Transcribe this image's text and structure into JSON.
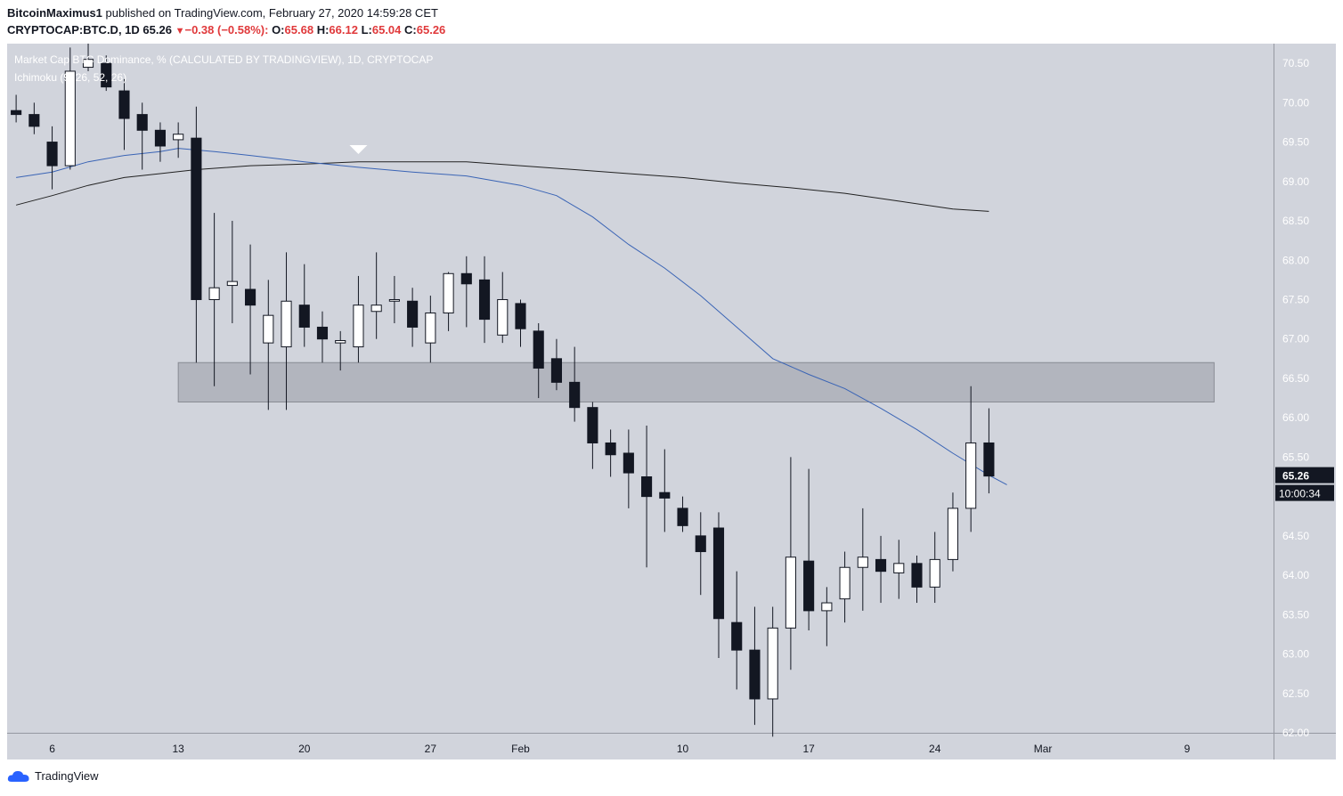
{
  "header": {
    "author": "BitcoinMaximus1",
    "published_text": "published on TradingView.com, February 27, 2020 14:59:28 CET",
    "symbol": "CRYPTOCAP:BTC.D, 1D",
    "last": "65.26",
    "change": "−0.38 (−0.58%):",
    "open_label": "O:",
    "open": "65.68",
    "high_label": "H:",
    "high": "66.12",
    "low_label": "L:",
    "low": "65.04",
    "close_label": "C:",
    "close": "65.26"
  },
  "chart_data": {
    "type": "candlestick",
    "title": "Market Cap BTC Dominance, % (CALCULATED BY TRADINGVIEW), 1D, CRYPTOCAP",
    "indicator": "Ichimoku (9, 26, 52, 26)",
    "ylim": [
      62.0,
      70.75
    ],
    "y_ticks": [
      "62.00",
      "62.50",
      "63.00",
      "63.50",
      "64.00",
      "64.50",
      "65.00",
      "65.50",
      "66.00",
      "66.50",
      "67.00",
      "67.50",
      "68.00",
      "68.50",
      "69.00",
      "69.50",
      "70.00",
      "70.50"
    ],
    "x_ticks": [
      "6",
      "13",
      "20",
      "27",
      "Feb",
      "10",
      "17",
      "24",
      "Mar",
      "9"
    ],
    "x_tick_days": [
      6,
      13,
      20,
      27,
      32,
      41,
      48,
      55,
      61,
      69
    ],
    "x_range_days": [
      3.5,
      73.8
    ],
    "candles": [
      {
        "d": "2020-01-04",
        "o": 69.9,
        "h": 70.1,
        "l": 69.75,
        "c": 69.85
      },
      {
        "d": "2020-01-05",
        "o": 69.85,
        "h": 70.0,
        "l": 69.6,
        "c": 69.7
      },
      {
        "d": "2020-01-06",
        "o": 69.5,
        "h": 69.7,
        "l": 68.9,
        "c": 69.2
      },
      {
        "d": "2020-01-07",
        "o": 69.2,
        "h": 70.7,
        "l": 69.15,
        "c": 70.4
      },
      {
        "d": "2020-01-08",
        "o": 70.45,
        "h": 70.75,
        "l": 70.4,
        "c": 70.55
      },
      {
        "d": "2020-01-09",
        "o": 70.5,
        "h": 70.6,
        "l": 70.15,
        "c": 70.2
      },
      {
        "d": "2020-01-10",
        "o": 70.15,
        "h": 70.3,
        "l": 69.4,
        "c": 69.8
      },
      {
        "d": "2020-01-11",
        "o": 69.85,
        "h": 70.0,
        "l": 69.15,
        "c": 69.65
      },
      {
        "d": "2020-01-12",
        "o": 69.65,
        "h": 69.75,
        "l": 69.25,
        "c": 69.45
      },
      {
        "d": "2020-01-13",
        "o": 69.53,
        "h": 69.75,
        "l": 69.3,
        "c": 69.6
      },
      {
        "d": "2020-01-14",
        "o": 69.55,
        "h": 69.95,
        "l": 66.7,
        "c": 67.5
      },
      {
        "d": "2020-01-15",
        "o": 67.5,
        "h": 68.6,
        "l": 66.4,
        "c": 67.65
      },
      {
        "d": "2020-01-16",
        "o": 67.68,
        "h": 68.5,
        "l": 67.2,
        "c": 67.73
      },
      {
        "d": "2020-01-17",
        "o": 67.63,
        "h": 68.2,
        "l": 66.55,
        "c": 67.43
      },
      {
        "d": "2020-01-18",
        "o": 66.95,
        "h": 67.75,
        "l": 66.1,
        "c": 67.3
      },
      {
        "d": "2020-01-19",
        "o": 66.9,
        "h": 68.1,
        "l": 66.1,
        "c": 67.48
      },
      {
        "d": "2020-01-20",
        "o": 67.43,
        "h": 67.95,
        "l": 66.9,
        "c": 67.15
      },
      {
        "d": "2020-01-21",
        "o": 67.15,
        "h": 67.35,
        "l": 66.7,
        "c": 67.0
      },
      {
        "d": "2020-01-22",
        "o": 66.95,
        "h": 67.1,
        "l": 66.6,
        "c": 66.98
      },
      {
        "d": "2020-01-23",
        "o": 66.9,
        "h": 67.8,
        "l": 66.7,
        "c": 67.43
      },
      {
        "d": "2020-01-24",
        "o": 67.35,
        "h": 68.1,
        "l": 67.0,
        "c": 67.43
      },
      {
        "d": "2020-01-25",
        "o": 67.48,
        "h": 67.8,
        "l": 67.2,
        "c": 67.5
      },
      {
        "d": "2020-01-26",
        "o": 67.48,
        "h": 67.65,
        "l": 66.9,
        "c": 67.15
      },
      {
        "d": "2020-01-27",
        "o": 66.95,
        "h": 67.55,
        "l": 66.7,
        "c": 67.33
      },
      {
        "d": "2020-01-28",
        "o": 67.33,
        "h": 67.85,
        "l": 67.1,
        "c": 67.83
      },
      {
        "d": "2020-01-29",
        "o": 67.83,
        "h": 68.05,
        "l": 67.15,
        "c": 67.7
      },
      {
        "d": "2020-01-30",
        "o": 67.75,
        "h": 68.05,
        "l": 66.95,
        "c": 67.25
      },
      {
        "d": "2020-01-31",
        "o": 67.05,
        "h": 67.85,
        "l": 66.95,
        "c": 67.5
      },
      {
        "d": "2020-02-01",
        "o": 67.45,
        "h": 67.5,
        "l": 66.9,
        "c": 67.13
      },
      {
        "d": "2020-02-02",
        "o": 67.1,
        "h": 67.2,
        "l": 66.25,
        "c": 66.63
      },
      {
        "d": "2020-02-03",
        "o": 66.75,
        "h": 67.0,
        "l": 66.35,
        "c": 66.45
      },
      {
        "d": "2020-02-04",
        "o": 66.45,
        "h": 66.9,
        "l": 65.95,
        "c": 66.13
      },
      {
        "d": "2020-02-05",
        "o": 66.13,
        "h": 66.2,
        "l": 65.35,
        "c": 65.68
      },
      {
        "d": "2020-02-06",
        "o": 65.68,
        "h": 65.85,
        "l": 65.25,
        "c": 65.53
      },
      {
        "d": "2020-02-07",
        "o": 65.55,
        "h": 65.85,
        "l": 64.85,
        "c": 65.3
      },
      {
        "d": "2020-02-08",
        "o": 65.25,
        "h": 65.9,
        "l": 64.1,
        "c": 65.0
      },
      {
        "d": "2020-02-09",
        "o": 65.05,
        "h": 65.6,
        "l": 64.55,
        "c": 64.98
      },
      {
        "d": "2020-02-10",
        "o": 64.85,
        "h": 65.0,
        "l": 64.55,
        "c": 64.63
      },
      {
        "d": "2020-02-11",
        "o": 64.5,
        "h": 64.8,
        "l": 63.75,
        "c": 64.3
      },
      {
        "d": "2020-02-12",
        "o": 64.6,
        "h": 64.8,
        "l": 62.95,
        "c": 63.45
      },
      {
        "d": "2020-02-13",
        "o": 63.4,
        "h": 64.05,
        "l": 62.55,
        "c": 63.05
      },
      {
        "d": "2020-02-14",
        "o": 63.05,
        "h": 63.6,
        "l": 62.1,
        "c": 62.43
      },
      {
        "d": "2020-02-15",
        "o": 62.43,
        "h": 63.6,
        "l": 61.95,
        "c": 63.33
      },
      {
        "d": "2020-02-16",
        "o": 63.33,
        "h": 65.5,
        "l": 62.8,
        "c": 64.23
      },
      {
        "d": "2020-02-17",
        "o": 64.18,
        "h": 65.35,
        "l": 63.3,
        "c": 63.55
      },
      {
        "d": "2020-02-18",
        "o": 63.55,
        "h": 63.85,
        "l": 63.1,
        "c": 63.65
      },
      {
        "d": "2020-02-19",
        "o": 63.7,
        "h": 64.3,
        "l": 63.4,
        "c": 64.1
      },
      {
        "d": "2020-02-20",
        "o": 64.1,
        "h": 64.85,
        "l": 63.55,
        "c": 64.23
      },
      {
        "d": "2020-02-21",
        "o": 64.2,
        "h": 64.5,
        "l": 63.65,
        "c": 64.05
      },
      {
        "d": "2020-02-22",
        "o": 64.03,
        "h": 64.45,
        "l": 63.7,
        "c": 64.15
      },
      {
        "d": "2020-02-23",
        "o": 64.15,
        "h": 64.25,
        "l": 63.65,
        "c": 63.85
      },
      {
        "d": "2020-02-24",
        "o": 63.85,
        "h": 64.55,
        "l": 63.65,
        "c": 64.2
      },
      {
        "d": "2020-02-25",
        "o": 64.2,
        "h": 65.05,
        "l": 64.05,
        "c": 64.85
      },
      {
        "d": "2020-02-26",
        "o": 64.85,
        "h": 66.4,
        "l": 64.55,
        "c": 65.68
      },
      {
        "d": "2020-02-27",
        "o": 65.68,
        "h": 66.12,
        "l": 65.04,
        "c": 65.26
      }
    ],
    "blue_line": [
      [
        4,
        69.05
      ],
      [
        6,
        69.12
      ],
      [
        8,
        69.25
      ],
      [
        10,
        69.33
      ],
      [
        12,
        69.38
      ],
      [
        13,
        69.42
      ],
      [
        15,
        69.38
      ],
      [
        17,
        69.33
      ],
      [
        20,
        69.25
      ],
      [
        23,
        69.18
      ],
      [
        26,
        69.12
      ],
      [
        29,
        69.07
      ],
      [
        32,
        68.95
      ],
      [
        34,
        68.82
      ],
      [
        36,
        68.55
      ],
      [
        38,
        68.2
      ],
      [
        40,
        67.9
      ],
      [
        42,
        67.55
      ],
      [
        44,
        67.15
      ],
      [
        46,
        66.75
      ],
      [
        48,
        66.55
      ],
      [
        50,
        66.37
      ],
      [
        52,
        66.12
      ],
      [
        54,
        65.85
      ],
      [
        56,
        65.55
      ],
      [
        58,
        65.27
      ],
      [
        59,
        65.15
      ]
    ],
    "black_line": [
      [
        4,
        68.7
      ],
      [
        6,
        68.82
      ],
      [
        8,
        68.95
      ],
      [
        10,
        69.05
      ],
      [
        12,
        69.1
      ],
      [
        14,
        69.15
      ],
      [
        17,
        69.2
      ],
      [
        20,
        69.22
      ],
      [
        23,
        69.25
      ],
      [
        26,
        69.25
      ],
      [
        29,
        69.25
      ],
      [
        32,
        69.2
      ],
      [
        35,
        69.15
      ],
      [
        38,
        69.1
      ],
      [
        41,
        69.05
      ],
      [
        44,
        68.98
      ],
      [
        47,
        68.92
      ],
      [
        50,
        68.85
      ],
      [
        53,
        68.75
      ],
      [
        56,
        68.65
      ],
      [
        58,
        68.62
      ]
    ],
    "zone": {
      "y_low": 66.2,
      "y_high": 66.7
    },
    "marker_day": 23,
    "price_label": "65.26",
    "countdown_label": "10:00:34",
    "colors": {
      "plot_bg": "#d1d4dc",
      "up": "#ffffff",
      "down": "#131722",
      "blue": "#3a64b5",
      "black": "#222222",
      "zone": "#b2b5be",
      "zone_border": "#888b93"
    }
  },
  "footer": {
    "brand": "TradingView"
  }
}
